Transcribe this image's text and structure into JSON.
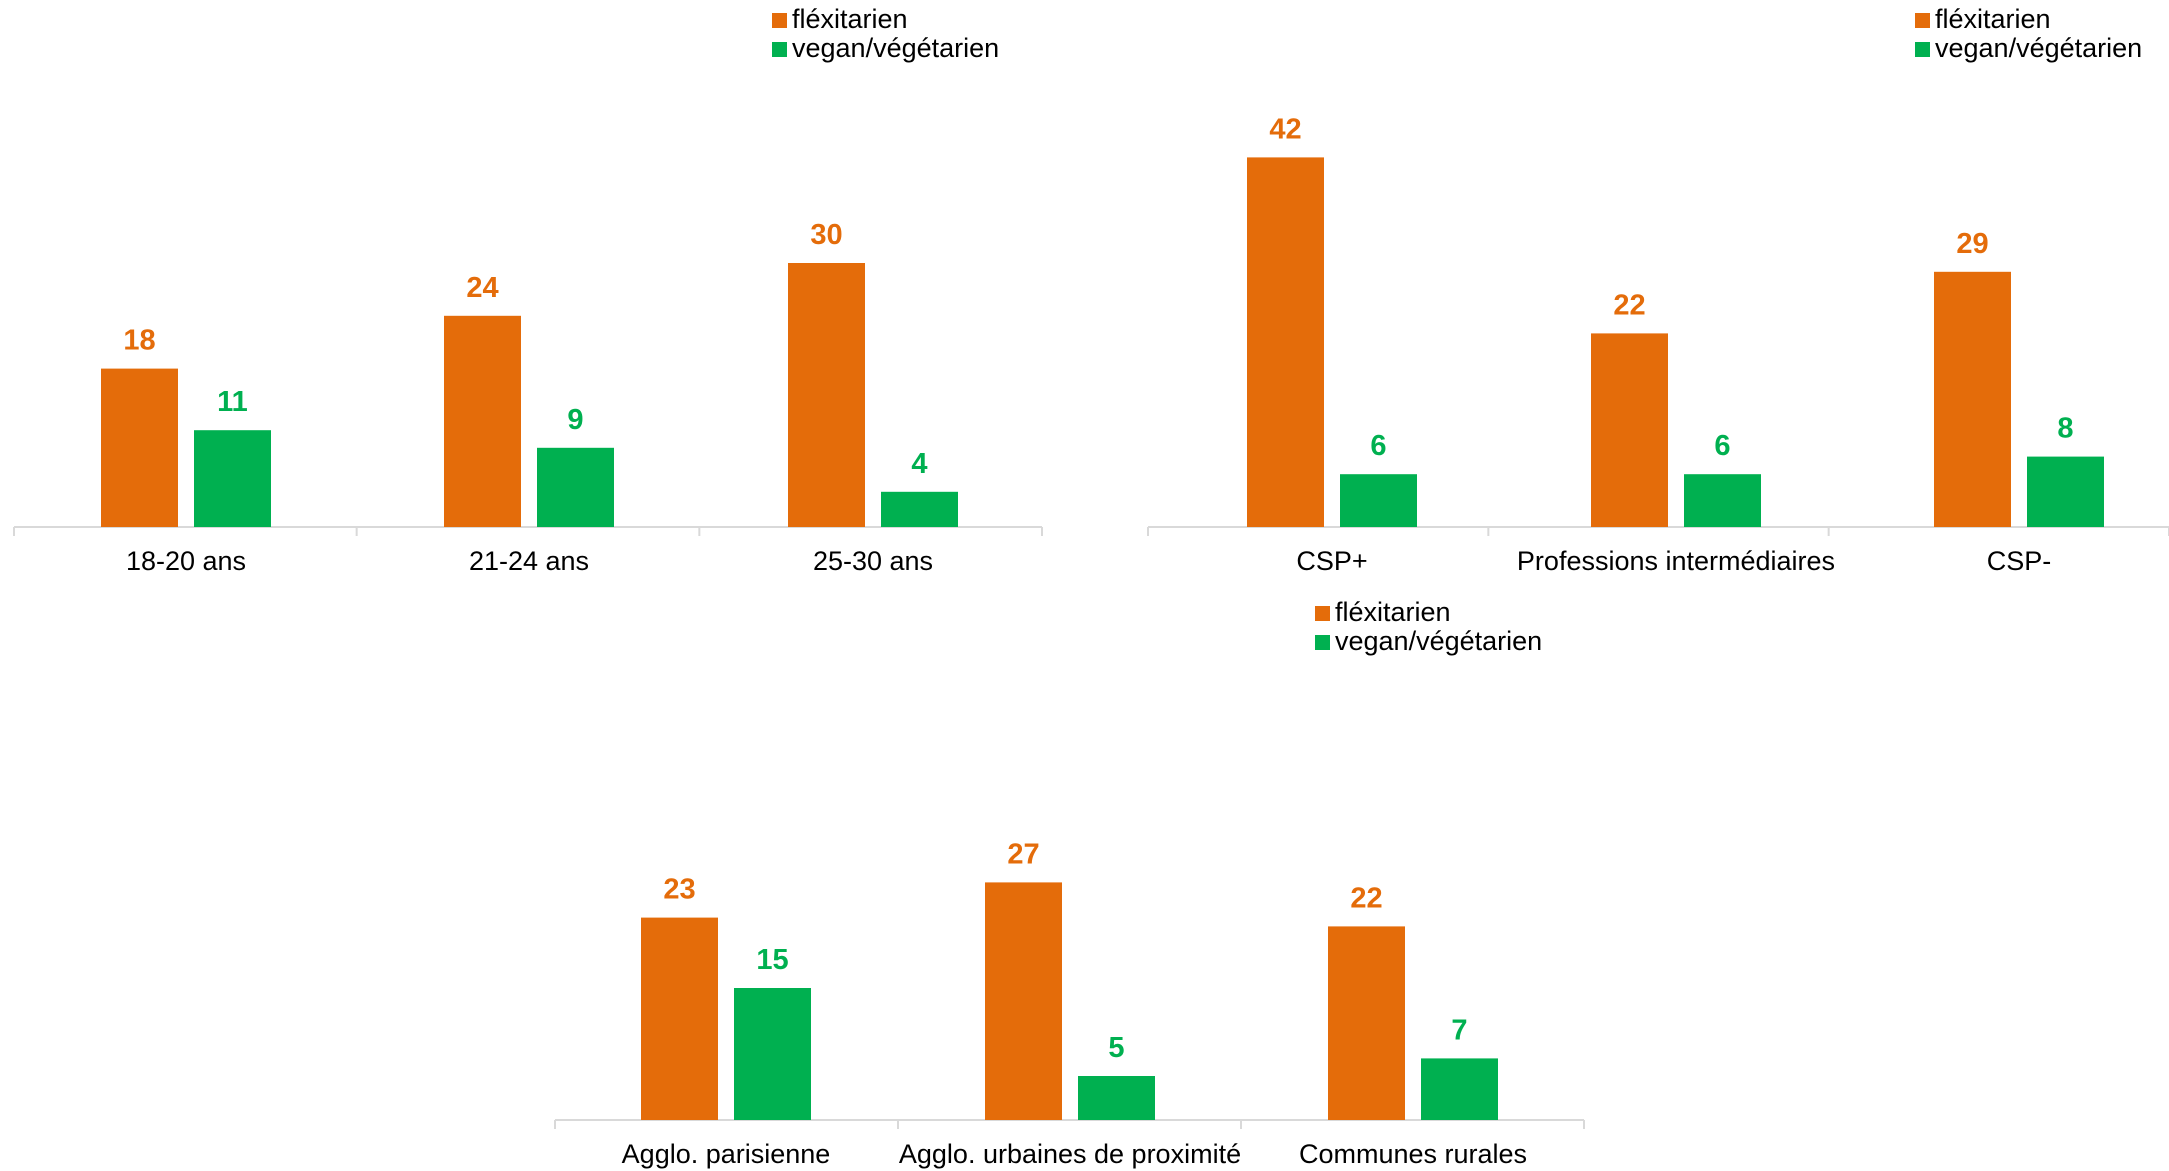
{
  "colors": {
    "flexitarien": "#E46C0A",
    "vegan": "#00B050",
    "axis": "#D9D9D9"
  },
  "legend": {
    "series1": "fléxitarien",
    "series2": "vegan/végétarien"
  },
  "chart_data": [
    {
      "type": "bar",
      "categories": [
        "18-20 ans",
        "21-24 ans",
        "25-30 ans"
      ],
      "series": [
        {
          "name": "fléxitarien",
          "values": [
            18,
            24,
            30
          ]
        },
        {
          "name": "vegan/végétarien",
          "values": [
            11,
            9,
            4
          ]
        }
      ],
      "legend_position": "top-right"
    },
    {
      "type": "bar",
      "categories": [
        "CSP+",
        "Professions intermédiaires",
        "CSP-"
      ],
      "series": [
        {
          "name": "fléxitarien",
          "values": [
            42,
            22,
            29
          ]
        },
        {
          "name": "vegan/végétarien",
          "values": [
            6,
            6,
            8
          ]
        }
      ],
      "legend_position": "top-right"
    },
    {
      "type": "bar",
      "categories": [
        "Agglo. parisienne",
        "Agglo. urbaines de proximité",
        "Communes rurales"
      ],
      "series": [
        {
          "name": "fléxitarien",
          "values": [
            23,
            27,
            22
          ]
        },
        {
          "name": "vegan/végétarien",
          "values": [
            15,
            5,
            7
          ]
        }
      ],
      "legend_position": "top"
    }
  ]
}
